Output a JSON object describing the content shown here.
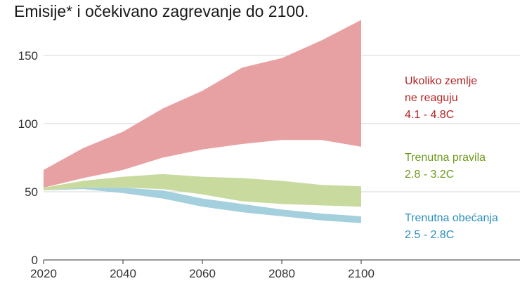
{
  "chart_data": {
    "type": "area",
    "title": "Emisije* i očekivano zagrevanje do 2100.",
    "xlabel": "",
    "ylabel": "",
    "xlim": [
      2020,
      2140
    ],
    "ylim": [
      0,
      170
    ],
    "x_ticks": [
      "2020",
      "2040",
      "2060",
      "2080",
      "2100"
    ],
    "y_ticks": [
      "0",
      "50",
      "100",
      "150"
    ],
    "grid": true,
    "x": [
      2020,
      2030,
      2040,
      2050,
      2060,
      2070,
      2080,
      2090,
      2100
    ],
    "series": [
      {
        "name": "Ukoliko zemlje ne reaguju",
        "label_lines": [
          "Ukoliko zemlje",
          "ne reaguju",
          "4.1 - 4.8C"
        ],
        "color": "#e8a1a3",
        "text_color": "#b32627",
        "upper": [
          66,
          82,
          94,
          111,
          124,
          141,
          148,
          161,
          176
        ],
        "lower": [
          53,
          60,
          66,
          75,
          81,
          85,
          88,
          88,
          83
        ]
      },
      {
        "name": "Trenutna pravila",
        "label_lines": [
          "Trenutna pravila",
          "2.8 - 3.2C"
        ],
        "color": "#c9da9f",
        "text_color": "#6e9a1c",
        "upper": [
          53,
          58,
          61,
          63,
          61,
          60,
          58,
          55,
          54
        ],
        "lower": [
          51,
          53,
          53,
          52,
          48,
          43,
          41,
          40,
          39
        ]
      },
      {
        "name": "Trenutna obećanja",
        "label_lines": [
          "Trenutna obećanja",
          "2.5 - 2.8C"
        ],
        "color": "#a4cfdd",
        "text_color": "#2a8fbd",
        "upper": [
          51,
          53,
          53,
          51,
          45,
          41,
          37,
          34,
          32
        ],
        "lower": [
          51,
          52,
          49,
          45,
          39,
          35,
          32,
          29,
          27
        ]
      }
    ]
  }
}
